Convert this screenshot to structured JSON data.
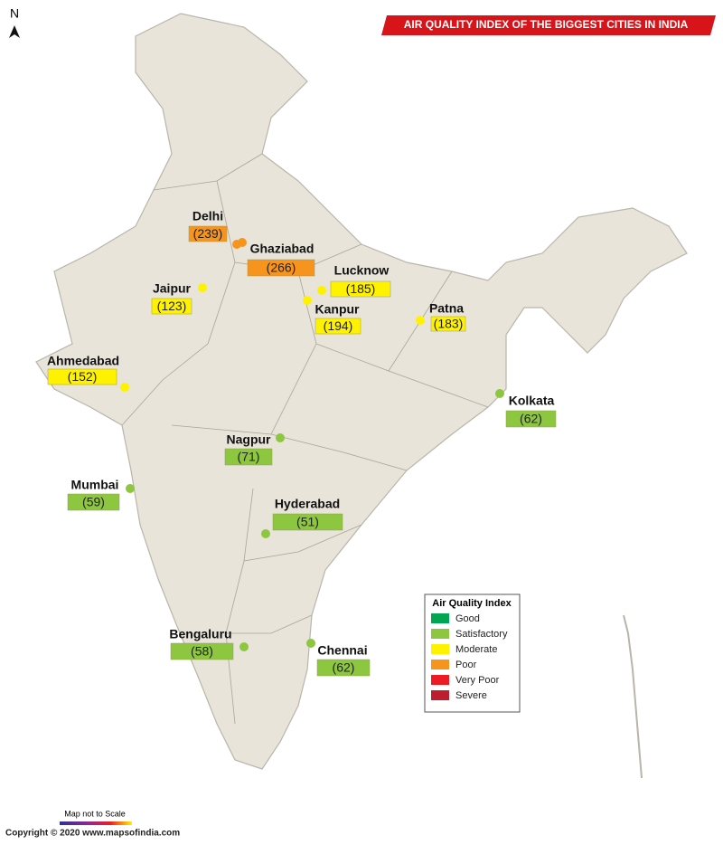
{
  "title": "AIR QUALITY INDEX OF THE BIGGEST CITIES IN INDIA",
  "north": "N",
  "legend": {
    "title": "Air Quality Index",
    "items": [
      {
        "label": "Good",
        "color": "#00a651"
      },
      {
        "label": "Satisfactory",
        "color": "#8dc63f"
      },
      {
        "label": "Moderate",
        "color": "#fff200"
      },
      {
        "label": "Poor",
        "color": "#f7941d"
      },
      {
        "label": "Very Poor",
        "color": "#ed1c24"
      },
      {
        "label": "Severe",
        "color": "#be1e2d"
      }
    ]
  },
  "cities": [
    {
      "name": "Delhi",
      "aqi": "(239)",
      "color": "#f7941d"
    },
    {
      "name": "Ghaziabad",
      "aqi": "(266)",
      "color": "#f7941d"
    },
    {
      "name": "Lucknow",
      "aqi": "(185)",
      "color": "#fff200"
    },
    {
      "name": "Kanpur",
      "aqi": "(194)",
      "color": "#fff200"
    },
    {
      "name": "Patna",
      "aqi": "(183)",
      "color": "#fff200"
    },
    {
      "name": "Jaipur",
      "aqi": "(123)",
      "color": "#fff200"
    },
    {
      "name": "Ahmedabad",
      "aqi": "(152)",
      "color": "#fff200"
    },
    {
      "name": "Kolkata",
      "aqi": "(62)",
      "color": "#8dc63f"
    },
    {
      "name": "Nagpur",
      "aqi": "(71)",
      "color": "#8dc63f"
    },
    {
      "name": "Mumbai",
      "aqi": "(59)",
      "color": "#8dc63f"
    },
    {
      "name": "Hyderabad",
      "aqi": "(51)",
      "color": "#8dc63f"
    },
    {
      "name": "Bengaluru",
      "aqi": "(58)",
      "color": "#8dc63f"
    },
    {
      "name": "Chennai",
      "aqi": "(62)",
      "color": "#8dc63f"
    }
  ],
  "footer": {
    "scale_note": "Map not to Scale",
    "copyright": "Copyright © 2020 www.mapsofindia.com"
  }
}
